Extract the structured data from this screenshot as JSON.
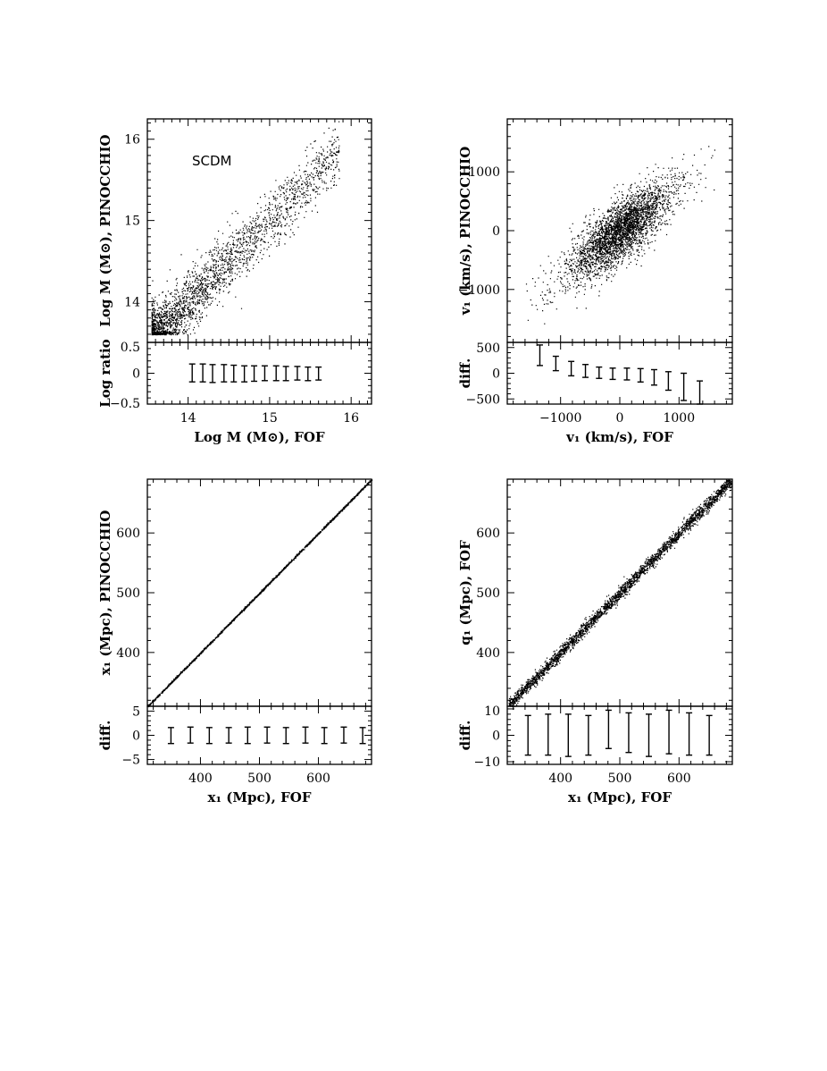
{
  "chart_data": [
    {
      "type": "scatter",
      "annotation": "SCDM",
      "xlabel": "Log M (M⊙), FOF",
      "ylabel": "Log M (M⊙), PINOCCHIO",
      "xlim": [
        13.5,
        16.25
      ],
      "ylim": [
        13.5,
        16.25
      ],
      "yscale": "log-ratio",
      "xticks": [
        "14",
        "15",
        "16"
      ],
      "yticks": [
        "14",
        "15",
        "16"
      ],
      "scatter": {
        "x_range": [
          13.55,
          15.85
        ],
        "relation": "y = x",
        "spread": 0.18,
        "n_points": 2600
      },
      "residual": {
        "ylabel": "Log ratio",
        "ylim": [
          -0.5,
          0.5
        ],
        "yticks": [
          "0.5",
          "0",
          "−0.5"
        ],
        "errorbars": [
          {
            "x": 14.05,
            "low": -0.14,
            "high": 0.15
          },
          {
            "x": 14.18,
            "low": -0.14,
            "high": 0.15
          },
          {
            "x": 14.3,
            "low": -0.15,
            "high": 0.14
          },
          {
            "x": 14.44,
            "low": -0.14,
            "high": 0.14
          },
          {
            "x": 14.56,
            "low": -0.14,
            "high": 0.13
          },
          {
            "x": 14.69,
            "low": -0.14,
            "high": 0.12
          },
          {
            "x": 14.81,
            "low": -0.13,
            "high": 0.12
          },
          {
            "x": 14.94,
            "low": -0.12,
            "high": 0.12
          },
          {
            "x": 15.08,
            "low": -0.12,
            "high": 0.12
          },
          {
            "x": 15.2,
            "low": -0.12,
            "high": 0.11
          },
          {
            "x": 15.34,
            "low": -0.11,
            "high": 0.11
          },
          {
            "x": 15.47,
            "low": -0.12,
            "high": 0.1
          },
          {
            "x": 15.6,
            "low": -0.11,
            "high": 0.1
          }
        ]
      }
    },
    {
      "type": "scatter",
      "xlabel": "v₁ (km/s), FOF",
      "ylabel": "v₁ (km/s), PINOCCHIO",
      "xlim": [
        -1900,
        1900
      ],
      "ylim": [
        -1900,
        1900
      ],
      "xticks": [
        "−1000",
        "0",
        "1000"
      ],
      "yticks": [
        "−1000",
        "0",
        "1000"
      ],
      "scatter": {
        "x_range": [
          -1600,
          1700
        ],
        "relation": "y = 0.75 x",
        "spread": 250,
        "n_points": 3200
      },
      "residual": {
        "ylabel": "diff.",
        "ylim": [
          -600,
          600
        ],
        "yticks": [
          "500",
          "0",
          "−500"
        ],
        "errorbars": [
          {
            "x": -1350,
            "low": 150,
            "high": 550
          },
          {
            "x": -1080,
            "low": 50,
            "high": 330
          },
          {
            "x": -820,
            "low": -50,
            "high": 230
          },
          {
            "x": -580,
            "low": -80,
            "high": 170
          },
          {
            "x": -350,
            "low": -100,
            "high": 120
          },
          {
            "x": -120,
            "low": -120,
            "high": 100
          },
          {
            "x": 120,
            "low": -130,
            "high": 100
          },
          {
            "x": 350,
            "low": -170,
            "high": 90
          },
          {
            "x": 580,
            "low": -230,
            "high": 70
          },
          {
            "x": 820,
            "low": -330,
            "high": 30
          },
          {
            "x": 1080,
            "low": -530,
            "high": 0
          },
          {
            "x": 1350,
            "low": -600,
            "high": -150
          }
        ]
      }
    },
    {
      "type": "scatter",
      "xlabel": "x₁ (Mpc), FOF",
      "ylabel": "x₁ (Mpc), PINOCCHIO",
      "xlim": [
        310,
        690
      ],
      "ylim": [
        310,
        690
      ],
      "xticks": [
        "400",
        "500",
        "600"
      ],
      "yticks": [
        "400",
        "500",
        "600"
      ],
      "scatter": {
        "x_range": [
          310,
          690
        ],
        "relation": "y = x",
        "spread": 0.8,
        "n_points": 1800
      },
      "residual": {
        "ylabel": "diff.",
        "ylim": [
          -6,
          6
        ],
        "yticks": [
          "5",
          "0",
          "−5"
        ],
        "errorbars": [
          {
            "x": 350,
            "low": -1.7,
            "high": 1.6
          },
          {
            "x": 383,
            "low": -1.6,
            "high": 1.7
          },
          {
            "x": 415,
            "low": -1.7,
            "high": 1.6
          },
          {
            "x": 448,
            "low": -1.6,
            "high": 1.6
          },
          {
            "x": 480,
            "low": -1.7,
            "high": 1.7
          },
          {
            "x": 513,
            "low": -1.6,
            "high": 1.7
          },
          {
            "x": 545,
            "low": -1.7,
            "high": 1.6
          },
          {
            "x": 578,
            "low": -1.6,
            "high": 1.7
          },
          {
            "x": 610,
            "low": -1.7,
            "high": 1.6
          },
          {
            "x": 643,
            "low": -1.6,
            "high": 1.7
          },
          {
            "x": 675,
            "low": -1.7,
            "high": 1.6
          }
        ]
      }
    },
    {
      "type": "scatter",
      "xlabel": "x₁ (Mpc), FOF",
      "ylabel": "q₁ (Mpc), FOF",
      "xlim": [
        310,
        690
      ],
      "ylim": [
        310,
        690
      ],
      "xticks": [
        "400",
        "500",
        "600"
      ],
      "yticks": [
        "400",
        "500",
        "600"
      ],
      "scatter": {
        "x_range": [
          312,
          688
        ],
        "relation": "y = x",
        "spread": 5.5,
        "n_points": 2800
      },
      "residual": {
        "ylabel": "diff.",
        "ylim": [
          -11,
          11
        ],
        "yticks": [
          "10",
          "0",
          "−10"
        ],
        "errorbars": [
          {
            "x": 345,
            "low": -7.5,
            "high": 7.5
          },
          {
            "x": 379,
            "low": -7.5,
            "high": 8.0
          },
          {
            "x": 413,
            "low": -8.0,
            "high": 8.0
          },
          {
            "x": 447,
            "low": -7.5,
            "high": 7.5
          },
          {
            "x": 481,
            "low": -5.0,
            "high": 9.5
          },
          {
            "x": 515,
            "low": -6.5,
            "high": 8.5
          },
          {
            "x": 549,
            "low": -8.0,
            "high": 8.0
          },
          {
            "x": 583,
            "low": -7.0,
            "high": 9.5
          },
          {
            "x": 617,
            "low": -7.5,
            "high": 8.5
          },
          {
            "x": 651,
            "low": -7.5,
            "high": 7.5
          }
        ]
      }
    }
  ]
}
